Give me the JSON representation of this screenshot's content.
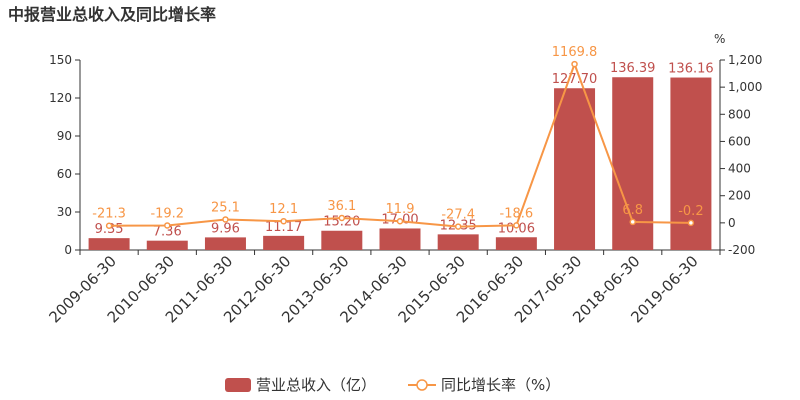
{
  "chart_data": {
    "type": "bar",
    "title": "中报营业总收入及同比增长率",
    "categories": [
      "2009-06-30",
      "2010-06-30",
      "2011-06-30",
      "2012-06-30",
      "2013-06-30",
      "2014-06-30",
      "2015-06-30",
      "2016-06-30",
      "2017-06-30",
      "2018-06-30",
      "2019-06-30"
    ],
    "series": [
      {
        "name": "营业总收入（亿）",
        "type": "bar",
        "axis": "left",
        "color": "#c0504d",
        "values": [
          9.35,
          7.36,
          9.96,
          11.17,
          15.2,
          17.0,
          12.35,
          10.06,
          127.7,
          136.39,
          136.16
        ],
        "labels": [
          "9.35",
          "7.36",
          "9.96",
          "11.17",
          "15.20",
          "17.00",
          "12.35",
          "10.06",
          "127.70",
          "136.39",
          "136.16"
        ]
      },
      {
        "name": "同比增长率（%）",
        "type": "line",
        "axis": "right",
        "color": "#f79646",
        "values": [
          -21.3,
          -19.2,
          25.1,
          12.1,
          36.1,
          11.9,
          -27.4,
          -18.6,
          1169.8,
          6.8,
          -0.2
        ],
        "labels": [
          "-21.3",
          "-19.2",
          "25.1",
          "12.1",
          "36.1",
          "11.9",
          "-27.4",
          "-18.6",
          "1169.8",
          "6.8",
          "-0.2"
        ]
      }
    ],
    "left_axis": {
      "min": 0,
      "max": 150,
      "ticks": [
        "0",
        "30",
        "60",
        "90",
        "120",
        "150"
      ]
    },
    "right_axis": {
      "min": -200,
      "max": 1200,
      "unit": "%",
      "ticks": [
        "-200",
        "0",
        "200",
        "400",
        "600",
        "800",
        "1,000",
        "1,200"
      ]
    },
    "legend_position": "bottom",
    "grid": false
  }
}
